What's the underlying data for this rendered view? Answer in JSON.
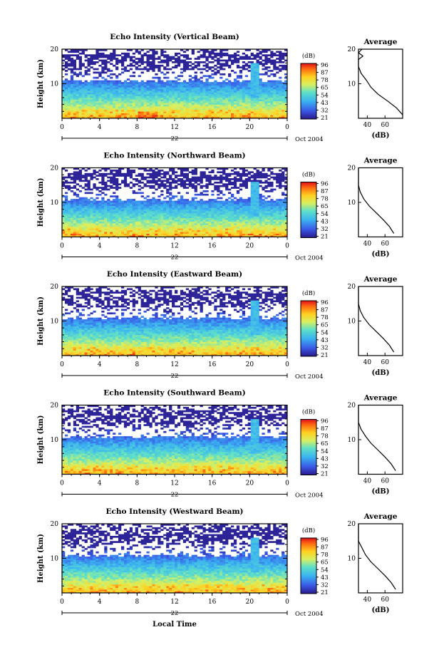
{
  "figure": {
    "date_label": "Oct 2004",
    "xlabel": "Local Time",
    "x_ticks": [
      "0",
      "4",
      "8",
      "12",
      "16",
      "20",
      "0"
    ],
    "colorbar_unit": "(dB)",
    "colorbar_ticks": [
      "96",
      "87",
      "78",
      "65",
      "54",
      "43",
      "32",
      "21"
    ],
    "avg_title": "Average",
    "avg_xlabel": "(dB)",
    "ylabel": "Height (km)"
  },
  "chart_data": [
    {
      "type": "heatmap",
      "title": "Echo Intensity (Vertical Beam)",
      "day_label": "22",
      "x": [
        0,
        24
      ],
      "y": [
        0,
        20
      ],
      "ylim": [
        0,
        20
      ],
      "y_ticks": [
        "20",
        "10"
      ],
      "avg_ticks": [
        "40",
        "60"
      ],
      "avg_profile": {
        "height_km": [
          1,
          3,
          5,
          7,
          9,
          11,
          13,
          15,
          17,
          18,
          19,
          20
        ],
        "db": [
          80,
          73,
          63,
          52,
          44,
          39,
          33,
          30,
          28,
          35,
          30,
          34
        ]
      }
    },
    {
      "type": "heatmap",
      "title": "Echo Intensity (Northward Beam)",
      "day_label": "22",
      "x": [
        0,
        24
      ],
      "y": [
        0,
        20
      ],
      "ylim": [
        0,
        20
      ],
      "y_ticks": [
        "20",
        "10"
      ],
      "avg_ticks": [
        "40",
        "60"
      ],
      "avg_profile": {
        "height_km": [
          1,
          3,
          5,
          7,
          9,
          11,
          13,
          15,
          17,
          18,
          19,
          20
        ],
        "db": [
          70,
          65,
          58,
          50,
          42,
          36,
          32,
          28,
          26,
          25,
          24,
          25
        ]
      }
    },
    {
      "type": "heatmap",
      "title": "Echo Intensity (Eastward Beam)",
      "day_label": "22",
      "x": [
        0,
        24
      ],
      "y": [
        0,
        20
      ],
      "ylim": [
        0,
        20
      ],
      "y_ticks": [
        "20",
        "10"
      ],
      "avg_ticks": [
        "40",
        "60"
      ],
      "avg_profile": {
        "height_km": [
          1,
          3,
          5,
          7,
          9,
          11,
          13,
          15,
          17,
          18,
          19,
          20
        ],
        "db": [
          70,
          65,
          58,
          50,
          42,
          36,
          32,
          28,
          27,
          25,
          24,
          25
        ]
      }
    },
    {
      "type": "heatmap",
      "title": "Echo Intensity (Southward Beam)",
      "day_label": "22",
      "x": [
        0,
        24
      ],
      "y": [
        0,
        20
      ],
      "ylim": [
        0,
        20
      ],
      "y_ticks": [
        "20",
        "10"
      ],
      "avg_ticks": [
        "40",
        "60"
      ],
      "avg_profile": {
        "height_km": [
          1,
          3,
          5,
          7,
          9,
          11,
          13,
          15,
          17,
          18,
          19,
          20
        ],
        "db": [
          72,
          67,
          60,
          52,
          44,
          38,
          33,
          30,
          28,
          26,
          25,
          26
        ]
      }
    },
    {
      "type": "heatmap",
      "title": "Echo Intensity (Westward Beam)",
      "day_label": "22",
      "x": [
        0,
        24
      ],
      "y": [
        0,
        20
      ],
      "ylim": [
        0,
        20
      ],
      "y_ticks": [
        "20",
        "10"
      ],
      "avg_ticks": [
        "40",
        "60"
      ],
      "avg_profile": {
        "height_km": [
          1,
          3,
          5,
          7,
          9,
          11,
          13,
          15,
          17,
          18,
          19,
          20
        ],
        "db": [
          72,
          67,
          60,
          52,
          44,
          38,
          34,
          30,
          29,
          30,
          27,
          26
        ]
      }
    }
  ]
}
